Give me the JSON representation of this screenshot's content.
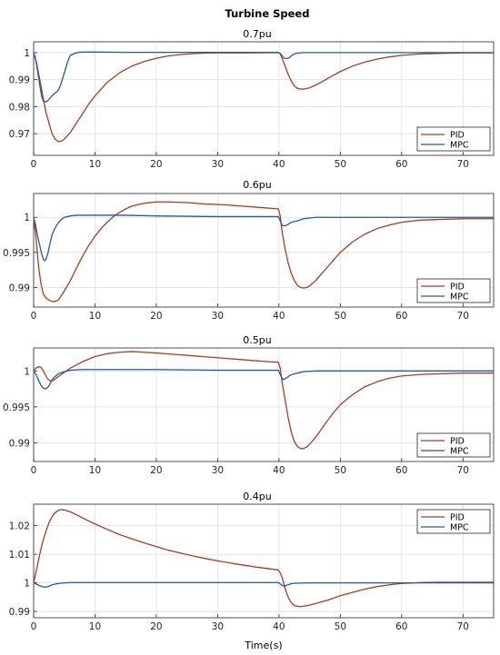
{
  "figure": {
    "title": "Turbine Speed",
    "xlabel": "Time(s)"
  },
  "chart_data": [
    {
      "type": "line",
      "title": "0.7pu",
      "xlim": [
        0,
        75
      ],
      "ylim": [
        0.962,
        1.004
      ],
      "xticks": [
        0,
        10,
        20,
        30,
        40,
        50,
        60,
        70
      ],
      "yticks": [
        0.97,
        0.98,
        0.99,
        1
      ],
      "ytick_labels": [
        "0.97",
        "0.98",
        "0.99",
        "1"
      ],
      "grid": true,
      "legend": "bottom-right",
      "series": [
        {
          "name": "PID",
          "color": "#b03a1e",
          "x": [
            0,
            0.5,
            1,
            1.5,
            2,
            2.5,
            3,
            3.5,
            4,
            4.5,
            5,
            6,
            7,
            8,
            9,
            10,
            12,
            14,
            16,
            18,
            20,
            22,
            24,
            26,
            28,
            30,
            35,
            39.9,
            40.2,
            40.5,
            41,
            41.5,
            42,
            42.5,
            43,
            43.5,
            44,
            44.5,
            45,
            46,
            47,
            48,
            49,
            50,
            52,
            54,
            56,
            58,
            60,
            63,
            66,
            70,
            75
          ],
          "y": [
            1.0,
            0.996,
            0.99,
            0.984,
            0.978,
            0.974,
            0.97,
            0.968,
            0.9671,
            0.9672,
            0.968,
            0.9705,
            0.974,
            0.9775,
            0.981,
            0.984,
            0.989,
            0.9925,
            0.995,
            0.9967,
            0.9979,
            0.9988,
            0.9993,
            0.9996,
            0.9998,
            0.9999,
            0.9999,
            1.0,
            0.9995,
            0.998,
            0.995,
            0.992,
            0.9895,
            0.9877,
            0.9868,
            0.9865,
            0.9865,
            0.9867,
            0.987,
            0.988,
            0.9892,
            0.9905,
            0.9918,
            0.993,
            0.995,
            0.9965,
            0.9976,
            0.9984,
            0.999,
            0.9995,
            0.9997,
            0.9999,
            0.9999
          ]
        },
        {
          "name": "MPC",
          "color": "#1f5aa6",
          "x": [
            0,
            0.3,
            0.6,
            1,
            1.3,
            1.6,
            1.9,
            2.2,
            2.6,
            3,
            3.5,
            4,
            4.4,
            4.8,
            5.2,
            5.6,
            6,
            6.5,
            7,
            8,
            9,
            10,
            15,
            20,
            30,
            39.9,
            40.3,
            40.8,
            41.2,
            41.6,
            42,
            42.5,
            43,
            44,
            45,
            50,
            60,
            75
          ],
          "y": [
            1.0,
            0.998,
            0.994,
            0.988,
            0.984,
            0.982,
            0.9818,
            0.982,
            0.983,
            0.984,
            0.985,
            0.986,
            0.988,
            0.991,
            0.994,
            0.997,
            0.999,
            0.9995,
            1.0,
            1.0002,
            1.0002,
            1.0002,
            1.0001,
            1.0001,
            1.0001,
            1.0001,
            0.9995,
            0.998,
            0.9978,
            0.998,
            0.9988,
            0.9995,
            0.9998,
            1.0,
            1.0,
            1.0,
            1.0,
            1.0
          ]
        }
      ]
    },
    {
      "type": "line",
      "title": "0.6pu",
      "xlim": [
        0,
        75
      ],
      "ylim": [
        0.9872,
        1.0034
      ],
      "xticks": [
        0,
        10,
        20,
        30,
        40,
        50,
        60,
        70
      ],
      "yticks": [
        0.99,
        0.995,
        1
      ],
      "ytick_labels": [
        "0.99",
        "0.995",
        "1"
      ],
      "grid": true,
      "legend": "bottom-right",
      "series": [
        {
          "name": "PID",
          "color": "#b03a1e",
          "x": [
            0,
            0.4,
            0.8,
            1.2,
            1.6,
            2,
            2.5,
            3,
            3.5,
            4,
            4.5,
            5,
            6,
            7,
            8,
            9,
            10,
            11,
            12,
            13,
            14,
            15,
            16,
            18,
            20,
            22,
            25,
            28,
            31,
            34,
            37,
            39.9,
            40.2,
            40.5,
            41,
            41.5,
            42,
            42.5,
            43,
            43.5,
            44,
            44.5,
            45,
            46,
            47,
            48,
            49,
            50,
            52,
            54,
            56,
            58,
            60,
            63,
            66,
            70,
            75
          ],
          "y": [
            1.0,
            0.997,
            0.993,
            0.9905,
            0.989,
            0.9885,
            0.9882,
            0.988,
            0.988,
            0.9882,
            0.9888,
            0.9895,
            0.991,
            0.9928,
            0.9945,
            0.996,
            0.9973,
            0.9984,
            0.9993,
            1.0001,
            1.0007,
            1.0012,
            1.0016,
            1.002,
            1.0022,
            1.0022,
            1.0021,
            1.0019,
            1.0018,
            1.0016,
            1.0014,
            1.0012,
            1.0002,
            0.998,
            0.9955,
            0.9935,
            0.992,
            0.991,
            0.9903,
            0.99,
            0.9899,
            0.99,
            0.9902,
            0.991,
            0.992,
            0.993,
            0.994,
            0.995,
            0.9965,
            0.9976,
            0.9984,
            0.9989,
            0.9993,
            0.9996,
            0.9997,
            0.9998,
            0.9998
          ]
        },
        {
          "name": "MPC",
          "color": "#1f5aa6",
          "x": [
            0,
            0.3,
            0.6,
            1,
            1.3,
            1.6,
            1.8,
            2,
            2.3,
            2.6,
            3,
            3.5,
            4,
            4.5,
            5,
            6,
            7,
            8,
            10,
            15,
            20,
            30,
            39.9,
            40.3,
            40.6,
            41,
            41.5,
            42,
            42.5,
            43,
            44,
            46,
            50,
            60,
            75
          ],
          "y": [
            1.0,
            0.999,
            0.9975,
            0.996,
            0.9948,
            0.994,
            0.9938,
            0.994,
            0.9948,
            0.996,
            0.9975,
            0.9985,
            0.9992,
            0.9997,
            1.0,
            1.0002,
            1.0003,
            1.0003,
            1.0003,
            1.0003,
            1.0002,
            1.0001,
            1.0001,
            0.9993,
            0.9988,
            0.9988,
            0.999,
            0.9993,
            0.9994,
            0.9995,
            0.9998,
            1.0,
            1.0,
            1.0,
            1.0
          ]
        }
      ]
    },
    {
      "type": "line",
      "title": "0.5pu",
      "xlim": [
        0,
        75
      ],
      "ylim": [
        0.9874,
        1.0032
      ],
      "xticks": [
        0,
        10,
        20,
        30,
        40,
        50,
        60,
        70
      ],
      "yticks": [
        0.99,
        0.995,
        1
      ],
      "ytick_labels": [
        "0.99",
        "0.995",
        "1"
      ],
      "grid": true,
      "legend": "bottom-right",
      "series": [
        {
          "name": "PID",
          "color": "#b03a1e",
          "x": [
            0,
            0.4,
            0.8,
            1.2,
            1.6,
            2,
            2.4,
            2.8,
            3.2,
            4,
            5,
            6,
            8,
            10,
            12,
            14,
            16,
            18,
            20,
            23,
            26,
            29,
            32,
            35,
            38,
            39.9,
            40.2,
            40.5,
            41,
            41.5,
            42,
            42.5,
            43,
            43.5,
            44,
            44.5,
            45,
            46,
            47,
            48,
            49,
            50,
            52,
            54,
            56,
            58,
            60,
            63,
            66,
            70,
            75
          ],
          "y": [
            1.0,
            1.0004,
            1.0006,
            1.0005,
            1.0,
            0.9993,
            0.9988,
            0.9986,
            0.9987,
            0.9992,
            0.9998,
            1.0004,
            1.0013,
            1.002,
            1.0024,
            1.0026,
            1.0027,
            1.0026,
            1.0025,
            1.0023,
            1.0021,
            1.0019,
            1.0017,
            1.0015,
            1.0013,
            1.0012,
            1.0004,
            0.9985,
            0.996,
            0.9935,
            0.9915,
            0.9902,
            0.9895,
            0.9892,
            0.9892,
            0.9894,
            0.9898,
            0.9908,
            0.992,
            0.9932,
            0.9943,
            0.9953,
            0.9967,
            0.9978,
            0.9985,
            0.999,
            0.9993,
            0.9995,
            0.9996,
            0.9997,
            0.9997
          ]
        },
        {
          "name": "MPC",
          "color": "#1f5aa6",
          "x": [
            0,
            0.4,
            0.8,
            1.2,
            1.6,
            2,
            2.4,
            2.8,
            3.2,
            4,
            5,
            6,
            8,
            10,
            15,
            20,
            30,
            39.9,
            40.3,
            40.7,
            41.2,
            41.8,
            42.5,
            43,
            44,
            46,
            50,
            60,
            75
          ],
          "y": [
            1.0,
            0.9995,
            0.9987,
            0.998,
            0.9976,
            0.9975,
            0.9978,
            0.9984,
            0.999,
            0.9996,
            0.9999,
            1.0001,
            1.0002,
            1.0002,
            1.0002,
            1.0002,
            1.0001,
            1.0001,
            0.9993,
            0.9988,
            0.999,
            0.9994,
            0.9996,
            0.9997,
            0.9999,
            1.0,
            1.0,
            1.0,
            1.0
          ]
        }
      ]
    },
    {
      "type": "line",
      "title": "0.4pu",
      "xlim": [
        0,
        75
      ],
      "ylim": [
        0.9878,
        1.0275
      ],
      "xticks": [
        0,
        10,
        20,
        30,
        40,
        50,
        60,
        70
      ],
      "yticks": [
        0.99,
        1,
        1.01,
        1.02
      ],
      "ytick_labels": [
        "0.99",
        "1",
        "1.01",
        "1.02"
      ],
      "grid": true,
      "legend": "top-right",
      "series": [
        {
          "name": "PID",
          "color": "#b03a1e",
          "x": [
            0,
            0.5,
            1,
            1.5,
            2,
            2.5,
            3,
            3.5,
            4,
            4.5,
            5,
            5.5,
            6,
            7,
            8,
            9,
            10,
            12,
            14,
            16,
            18,
            20,
            22,
            24,
            26,
            28,
            30,
            33,
            36,
            39.9,
            40.2,
            40.5,
            41,
            41.5,
            42,
            42.5,
            43,
            43.5,
            44,
            45,
            46,
            48,
            50,
            52,
            54,
            56,
            58,
            60,
            63,
            66,
            70,
            75
          ],
          "y": [
            1.0,
            1.005,
            1.01,
            1.0145,
            1.018,
            1.021,
            1.0232,
            1.0245,
            1.0253,
            1.0256,
            1.0255,
            1.0252,
            1.0248,
            1.0238,
            1.0227,
            1.0216,
            1.0206,
            1.0187,
            1.0169,
            1.0154,
            1.014,
            1.0127,
            1.0114,
            1.0104,
            1.0094,
            1.0085,
            1.0077,
            1.0066,
            1.0056,
            1.0045,
            1.0035,
            1.002,
            0.998,
            0.995,
            0.993,
            0.9921,
            0.9918,
            0.9917,
            0.9918,
            0.9922,
            0.9928,
            0.994,
            0.9955,
            0.9967,
            0.9978,
            0.9987,
            0.9993,
            0.9998,
            1.0001,
            1.0002,
            1.0002,
            1.0002
          ]
        },
        {
          "name": "MPC",
          "color": "#1f5aa6",
          "x": [
            0,
            0.5,
            1,
            1.5,
            2,
            2.5,
            3,
            4,
            5,
            6,
            8,
            10,
            15,
            20,
            30,
            39.9,
            40.4,
            40.8,
            41.3,
            42,
            43,
            45,
            50,
            60,
            75
          ],
          "y": [
            1.0,
            0.9995,
            0.999,
            0.9986,
            0.9985,
            0.9988,
            0.9993,
            0.9998,
            1.0,
            1.0001,
            1.0001,
            1.0001,
            1.0001,
            1.0001,
            1.0001,
            1.0001,
            0.9993,
            0.9988,
            0.9992,
            0.9997,
            0.9999,
            1.0,
            1.0,
            1.0,
            1.0
          ]
        }
      ]
    }
  ]
}
